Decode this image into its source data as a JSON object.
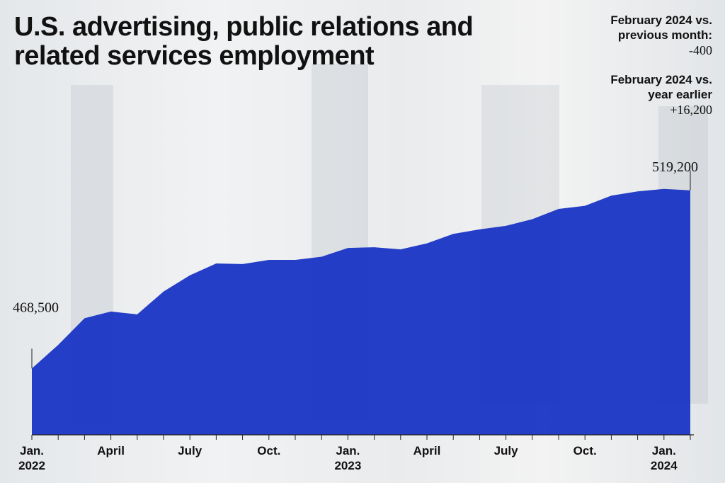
{
  "chart_data": {
    "type": "area",
    "title": "U.S. advertising, public relations and related services employment",
    "annotations": [
      {
        "label": "February 2024 vs. previous month:",
        "text": "-400"
      },
      {
        "label": "February 2024 vs. year earlier",
        "text": "+16,200"
      }
    ],
    "categories": [
      "Jan. 2022",
      null,
      null,
      "April",
      null,
      null,
      "July",
      null,
      null,
      "Oct.",
      null,
      null,
      "Jan. 2023",
      null,
      null,
      "April",
      null,
      null,
      "July",
      null,
      null,
      "Oct.",
      null,
      null,
      "Jan. 2024",
      null
    ],
    "values": [
      468500,
      475200,
      482800,
      484700,
      483900,
      490400,
      495000,
      498400,
      498200,
      499400,
      499400,
      500300,
      502800,
      503000,
      502400,
      504100,
      506800,
      508100,
      509100,
      511000,
      513900,
      514800,
      517700,
      518900,
      519600,
      519200
    ],
    "value_labels": [
      "468,500",
      null,
      null,
      null,
      null,
      null,
      null,
      null,
      null,
      null,
      null,
      null,
      null,
      null,
      null,
      null,
      null,
      null,
      null,
      null,
      null,
      null,
      null,
      null,
      null,
      "519,200"
    ],
    "color": "#1630c4",
    "ylim": [
      449600,
      525000
    ]
  }
}
